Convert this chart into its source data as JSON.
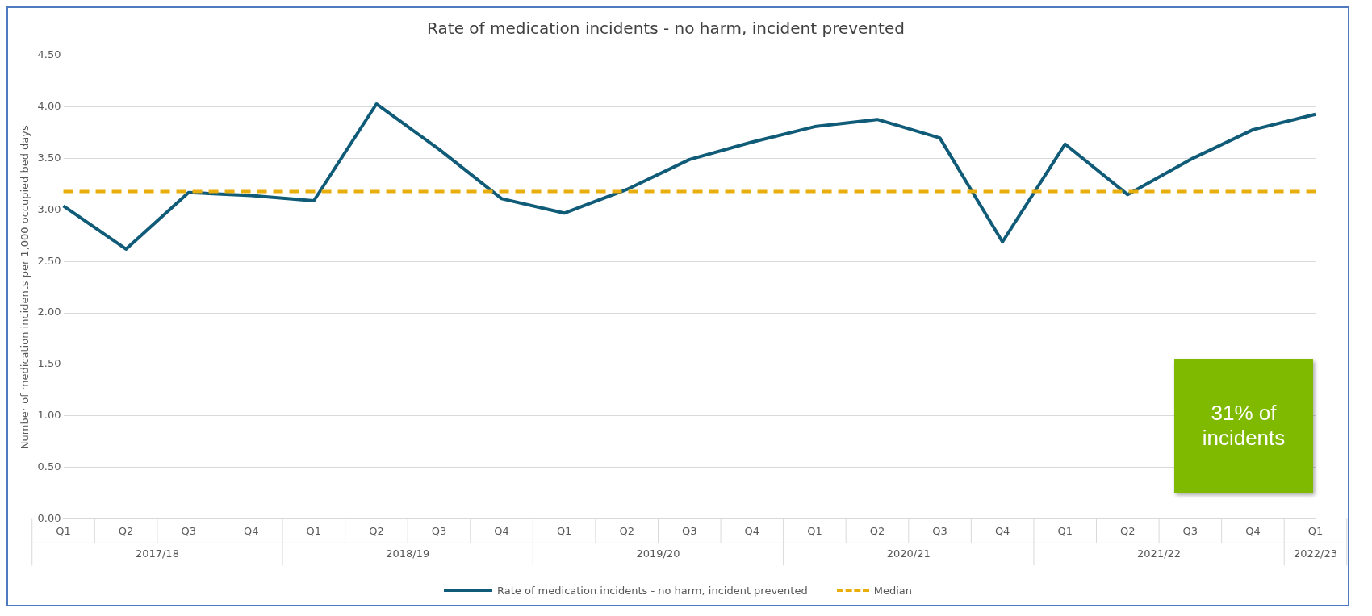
{
  "chart_data": {
    "type": "line",
    "title": "Rate of medication incidents - no harm, incident prevented",
    "ylabel": "Number of medication incidents per 1,000 occupied bed days",
    "categories": [
      "Q1",
      "Q2",
      "Q3",
      "Q4",
      "Q1",
      "Q2",
      "Q3",
      "Q4",
      "Q1",
      "Q2",
      "Q3",
      "Q4",
      "Q1",
      "Q2",
      "Q3",
      "Q4",
      "Q1",
      "Q2",
      "Q3",
      "Q4",
      "Q1"
    ],
    "series": [
      {
        "name": "Rate of medication incidents - no harm, incident prevented",
        "color": "#0f5b78",
        "values": [
          3.04,
          2.62,
          3.17,
          3.14,
          3.09,
          4.03,
          3.59,
          3.11,
          2.97,
          3.2,
          3.49,
          3.66,
          3.81,
          3.88,
          3.7,
          2.69,
          3.64,
          3.15,
          3.49,
          3.78,
          3.93
        ]
      }
    ],
    "ref_lines": [
      {
        "axis": "y",
        "value": 3.18,
        "label": "Median",
        "color": "#e8ae0c",
        "line_style": "dashed"
      }
    ],
    "ylim": [
      0,
      4.5
    ],
    "yticks": [
      {
        "value": 0,
        "label": "0.00"
      },
      {
        "value": 0.5,
        "label": "0.50"
      },
      {
        "value": 1,
        "label": "1.00"
      },
      {
        "value": 1.5,
        "label": "1.50"
      },
      {
        "value": 2,
        "label": "2.00"
      },
      {
        "value": 2.5,
        "label": "2.50"
      },
      {
        "value": 3,
        "label": "3.00"
      },
      {
        "value": 3.5,
        "label": "3.50"
      },
      {
        "value": 4,
        "label": "4.00"
      },
      {
        "value": 4.5,
        "label": "4.50"
      }
    ],
    "grid": "y",
    "legend": "bottom",
    "marker": "none",
    "line_style": "solid",
    "annotations": [
      "2017/18",
      "2018/19",
      "2019/20",
      "2020/21",
      "2021/22",
      "2022/23",
      "31% of incidents"
    ]
  }
}
